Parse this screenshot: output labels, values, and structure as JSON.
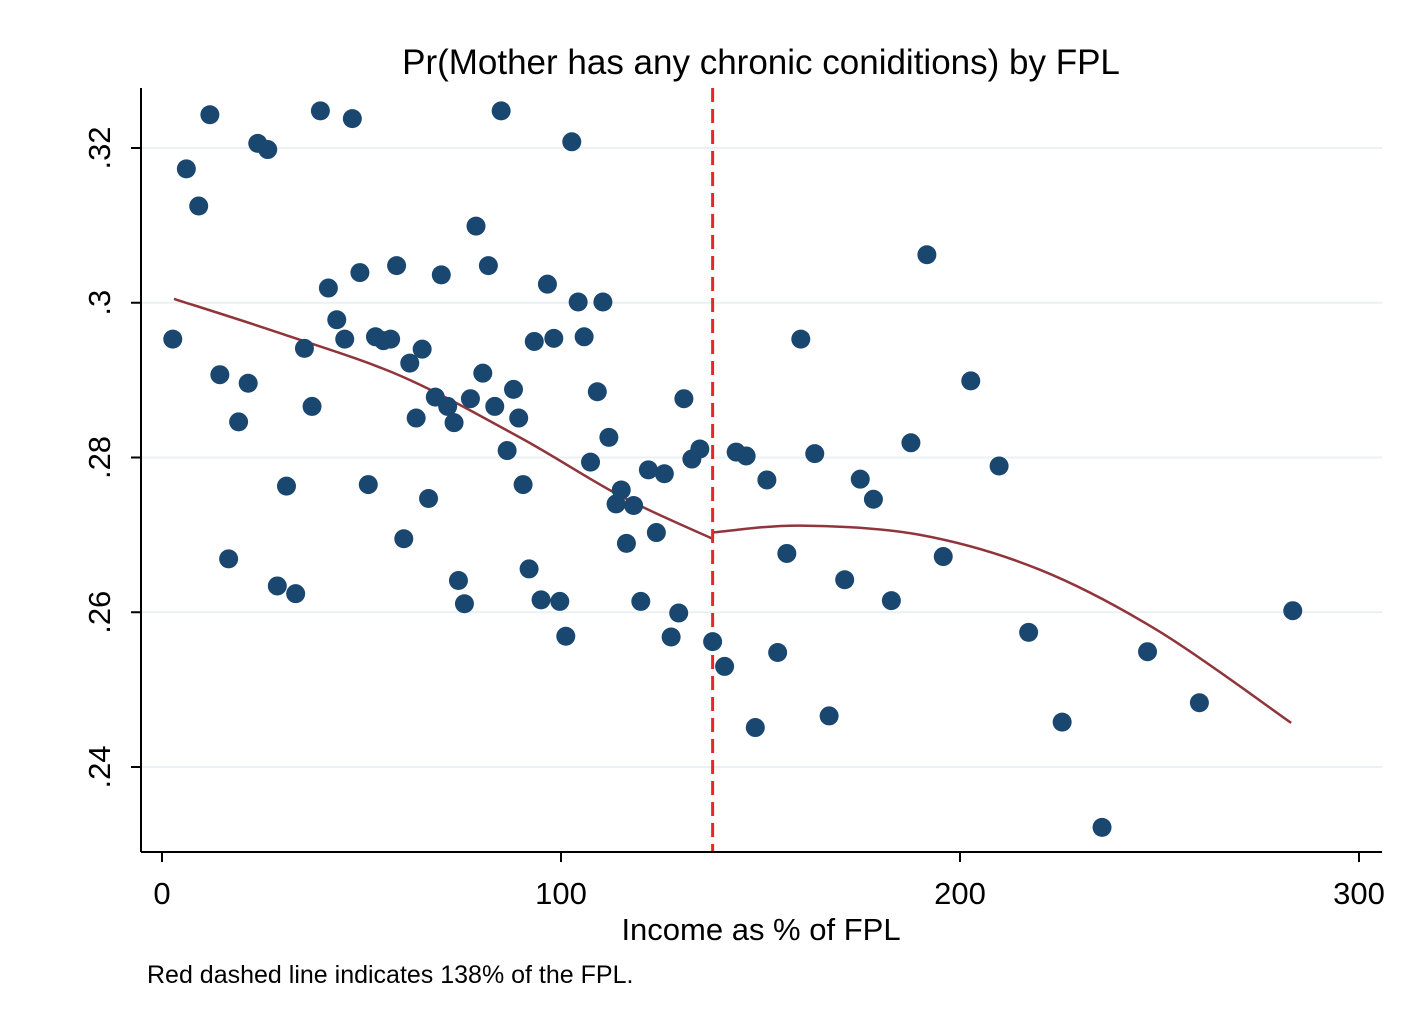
{
  "chart_data": {
    "type": "scatter",
    "title": "Pr(Mother has any chronic coniditions) by FPL",
    "xlabel": "Income as % of FPL",
    "ylabel": "",
    "note": "Red dashed line indicates 138% of the FPL.",
    "xlim": [
      -5,
      305
    ],
    "ylim": [
      0.2305,
      0.3275
    ],
    "xticks": [
      0,
      100,
      200,
      300
    ],
    "xtick_labels": [
      "0",
      "100",
      "200",
      "300"
    ],
    "yticks": [
      0.24,
      0.26,
      0.28,
      0.3,
      0.32
    ],
    "ytick_labels": [
      ".24",
      ".26",
      ".28",
      ".3",
      ".32"
    ],
    "grid": true,
    "legend": "none",
    "colors": {
      "points": "#1a476f",
      "fit": "#90353b",
      "cutoff": "#e8262a",
      "grid": "#eaf0f3"
    },
    "cutoff_x": 138,
    "points": [
      [
        2.7,
        0.2953
      ],
      [
        6.1,
        0.3173
      ],
      [
        9.2,
        0.3125
      ],
      [
        12.0,
        0.3243
      ],
      [
        14.5,
        0.2907
      ],
      [
        16.7,
        0.2669
      ],
      [
        19.2,
        0.2846
      ],
      [
        21.6,
        0.2896
      ],
      [
        24.0,
        0.3206
      ],
      [
        26.5,
        0.3198
      ],
      [
        28.9,
        0.2634
      ],
      [
        31.2,
        0.2763
      ],
      [
        33.5,
        0.2624
      ],
      [
        35.7,
        0.2941
      ],
      [
        37.6,
        0.2866
      ],
      [
        39.7,
        0.3248
      ],
      [
        41.7,
        0.3019
      ],
      [
        43.8,
        0.2978
      ],
      [
        45.8,
        0.2953
      ],
      [
        47.7,
        0.3238
      ],
      [
        49.6,
        0.3039
      ],
      [
        51.7,
        0.2765
      ],
      [
        53.5,
        0.2956
      ],
      [
        55.5,
        0.2951
      ],
      [
        57.3,
        0.2953
      ],
      [
        58.8,
        0.3048
      ],
      [
        60.6,
        0.2695
      ],
      [
        62.1,
        0.2922
      ],
      [
        63.7,
        0.2851
      ],
      [
        65.2,
        0.294
      ],
      [
        66.8,
        0.2747
      ],
      [
        68.5,
        0.2878
      ],
      [
        70.0,
        0.3036
      ],
      [
        71.6,
        0.2866
      ],
      [
        73.2,
        0.2845
      ],
      [
        74.3,
        0.2641
      ],
      [
        75.8,
        0.2611
      ],
      [
        77.3,
        0.2876
      ],
      [
        78.7,
        0.3099
      ],
      [
        80.4,
        0.2909
      ],
      [
        81.8,
        0.3048
      ],
      [
        83.4,
        0.2866
      ],
      [
        85.0,
        0.3248
      ],
      [
        86.5,
        0.2809
      ],
      [
        88.1,
        0.2888
      ],
      [
        89.4,
        0.2851
      ],
      [
        90.5,
        0.2765
      ],
      [
        92.0,
        0.2656
      ],
      [
        93.3,
        0.295
      ],
      [
        95.0,
        0.2616
      ],
      [
        96.6,
        0.3024
      ],
      [
        98.2,
        0.2954
      ],
      [
        99.7,
        0.2614
      ],
      [
        101.2,
        0.2569
      ],
      [
        102.7,
        0.3208
      ],
      [
        104.3,
        0.3001
      ],
      [
        105.8,
        0.2956
      ],
      [
        107.4,
        0.2794
      ],
      [
        109.1,
        0.2885
      ],
      [
        110.5,
        0.3001
      ],
      [
        112.0,
        0.2826
      ],
      [
        113.8,
        0.274
      ],
      [
        115.1,
        0.2758
      ],
      [
        116.4,
        0.2689
      ],
      [
        118.2,
        0.2738
      ],
      [
        120.0,
        0.2614
      ],
      [
        121.9,
        0.2784
      ],
      [
        123.9,
        0.2703
      ],
      [
        125.9,
        0.2779
      ],
      [
        127.6,
        0.2568
      ],
      [
        129.5,
        0.2599
      ],
      [
        130.8,
        0.2876
      ],
      [
        132.8,
        0.2798
      ],
      [
        134.8,
        0.2811
      ],
      [
        138.0,
        0.2562
      ],
      [
        141.0,
        0.253
      ],
      [
        143.9,
        0.2807
      ],
      [
        146.4,
        0.2802
      ],
      [
        148.7,
        0.2451
      ],
      [
        151.6,
        0.2771
      ],
      [
        154.3,
        0.2548
      ],
      [
        156.6,
        0.2676
      ],
      [
        160.1,
        0.2953
      ],
      [
        163.6,
        0.2805
      ],
      [
        167.2,
        0.2466
      ],
      [
        171.1,
        0.2642
      ],
      [
        175.0,
        0.2772
      ],
      [
        178.3,
        0.2746
      ],
      [
        182.8,
        0.2615
      ],
      [
        187.7,
        0.2819
      ],
      [
        191.7,
        0.3062
      ],
      [
        195.8,
        0.2672
      ],
      [
        202.7,
        0.2899
      ],
      [
        209.8,
        0.2789
      ],
      [
        217.2,
        0.2574
      ],
      [
        225.6,
        0.2458
      ],
      [
        235.6,
        0.2322
      ],
      [
        247.0,
        0.2549
      ],
      [
        260.0,
        0.2483
      ],
      [
        283.4,
        0.2602
      ]
    ],
    "fit_left": [
      [
        3,
        0.3005
      ],
      [
        30,
        0.296
      ],
      [
        60,
        0.2905
      ],
      [
        90,
        0.2825
      ],
      [
        115,
        0.275
      ],
      [
        138,
        0.2695
      ]
    ],
    "fit_right": [
      [
        138,
        0.2703
      ],
      [
        160,
        0.2712
      ],
      [
        190,
        0.27
      ],
      [
        220,
        0.2655
      ],
      [
        250,
        0.2575
      ],
      [
        283,
        0.2457
      ]
    ]
  }
}
